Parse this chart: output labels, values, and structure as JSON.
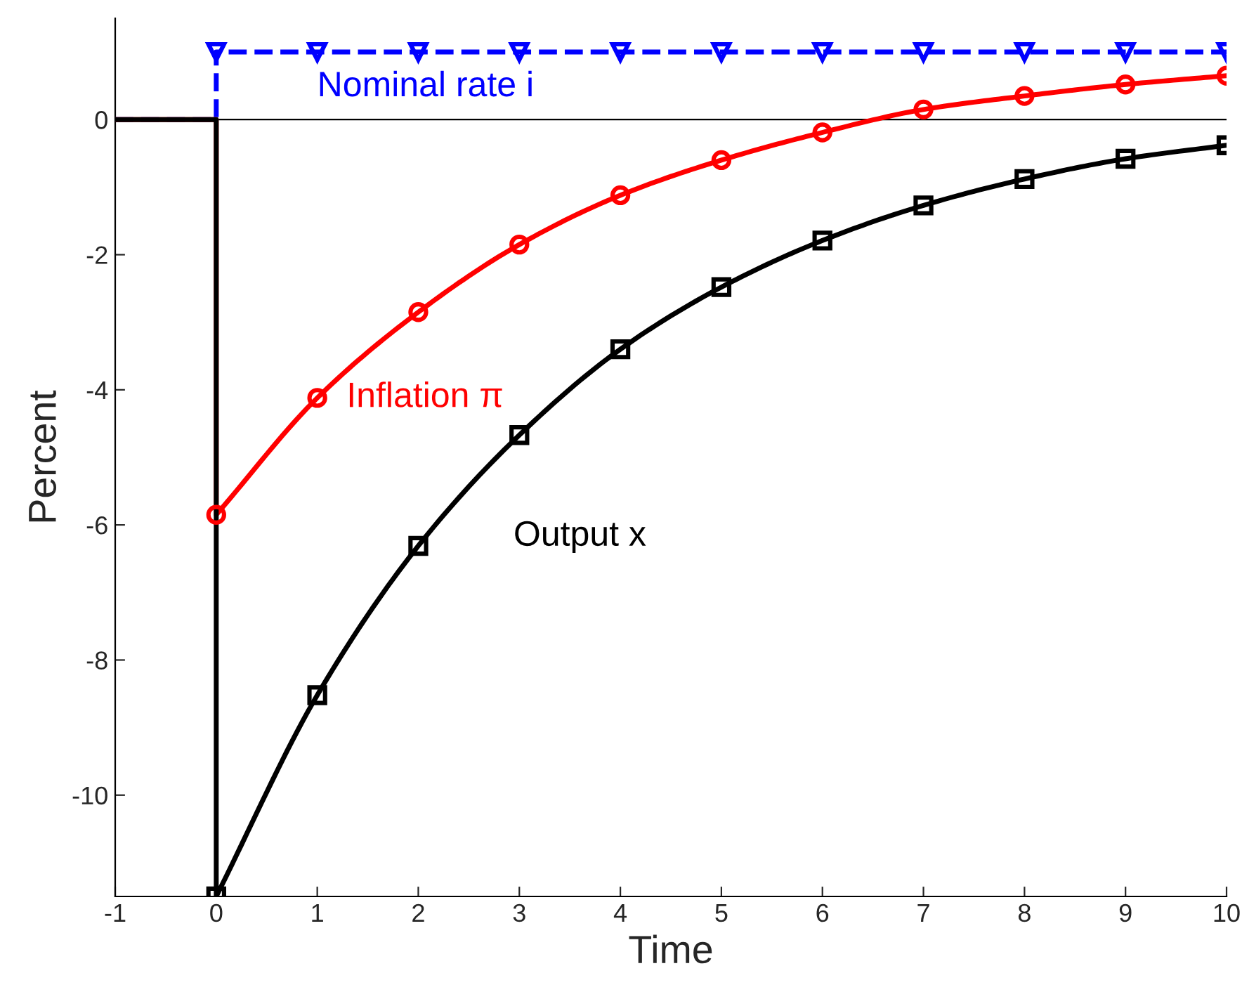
{
  "chart_data": {
    "type": "line",
    "xlabel": "Time",
    "ylabel": "Percent",
    "xlim": [
      -1,
      10
    ],
    "ylim": [
      -11.5,
      1.5
    ],
    "xticks": [
      -1,
      0,
      1,
      2,
      3,
      4,
      5,
      6,
      7,
      8,
      9,
      10
    ],
    "yticks": [
      -10,
      -8,
      -6,
      -4,
      -2,
      0
    ],
    "grid": false,
    "legend": false,
    "ref_lines": [
      {
        "axis": "y",
        "value": 0,
        "color": "#000000"
      }
    ],
    "series": [
      {
        "name": "Nominal rate i",
        "color": "#0000ff",
        "marker": "triangle",
        "line_style": "dashed",
        "x": [
          -1,
          0,
          0,
          1,
          2,
          3,
          4,
          5,
          6,
          7,
          8,
          9,
          10
        ],
        "values": [
          0,
          0,
          1,
          1,
          1,
          1,
          1,
          1,
          1,
          1,
          1,
          1,
          1
        ]
      },
      {
        "name": "Inflation π",
        "color": "#ff0000",
        "marker": "circle",
        "line_style": "solid",
        "x": [
          -1,
          0,
          0,
          1,
          2,
          3,
          4,
          5,
          6,
          7,
          8,
          9,
          10
        ],
        "values": [
          0,
          0,
          -5.85,
          -4.12,
          -2.85,
          -1.85,
          -1.12,
          -0.6,
          -0.19,
          0.15,
          0.35,
          0.52,
          0.65
        ]
      },
      {
        "name": "Output x",
        "color": "#000000",
        "marker": "square",
        "line_style": "solid",
        "x": [
          -1,
          0,
          0,
          1,
          2,
          3,
          4,
          5,
          6,
          7,
          8,
          9,
          10
        ],
        "values": [
          0,
          0,
          -11.5,
          -8.52,
          -6.31,
          -4.67,
          -3.4,
          -2.48,
          -1.79,
          -1.27,
          -0.88,
          -0.58,
          -0.38
        ]
      }
    ]
  }
}
